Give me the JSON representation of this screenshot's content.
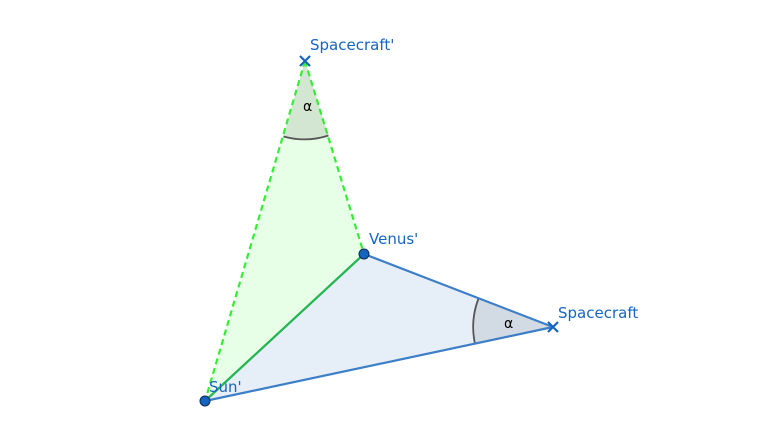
{
  "diagram": {
    "points": {
      "spacecraft_prime": "Spacecraft'",
      "venus_prime": "Venus'",
      "sun_prime": "Sun'",
      "spacecraft": "Spacecraft"
    },
    "angles": {
      "top": "α",
      "right": "α"
    },
    "colors": {
      "label_blue": "#1565c0",
      "point_fill": "#1565c0",
      "blue_edge": "#3d7ec9",
      "blue_fill": "#e6eef8",
      "green_dash": "#33ee33",
      "green_solid": "#22bb44",
      "green_fill": "#e6ffe6",
      "angle_fill_green": "#d2e6d2",
      "angle_fill_blue": "#d2dae4",
      "angle_arc": "#555555"
    }
  }
}
